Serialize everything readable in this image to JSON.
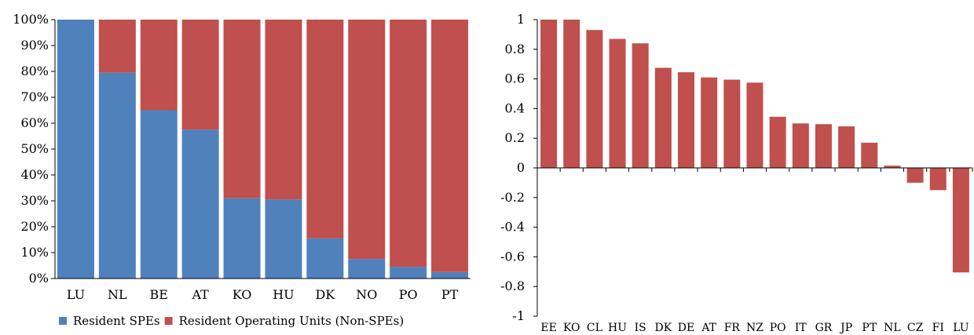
{
  "chart_data": [
    {
      "type": "bar",
      "stacked": true,
      "percent": true,
      "categories": [
        "LU",
        "NL",
        "BE",
        "AT",
        "KO",
        "HU",
        "DK",
        "NO",
        "PO",
        "PT"
      ],
      "series": [
        {
          "name": "Resident SPEs",
          "color": "#4f81bd",
          "values": [
            100,
            79.5,
            65,
            57.5,
            31,
            30.5,
            15.5,
            7.5,
            4.5,
            2.5
          ]
        },
        {
          "name": "Resident Operating Units (Non-SPEs)",
          "color": "#c0504d",
          "values": [
            0,
            20.5,
            35,
            42.5,
            69,
            69.5,
            84.5,
            92.5,
            95.5,
            97.5
          ]
        }
      ],
      "ylim": [
        0,
        100
      ],
      "yticks": [
        "0%",
        "10%",
        "20%",
        "30%",
        "40%",
        "50%",
        "60%",
        "70%",
        "80%",
        "90%",
        "100%"
      ],
      "legend_position": "bottom"
    },
    {
      "type": "bar",
      "categories": [
        "EE",
        "KO",
        "CL",
        "HU",
        "IS",
        "DK",
        "DE",
        "AT",
        "FR",
        "NZ",
        "PO",
        "IT",
        "GR",
        "JP",
        "PT",
        "NL",
        "CZ",
        "FI",
        "LU"
      ],
      "values": [
        1.0,
        1.0,
        0.93,
        0.87,
        0.84,
        0.675,
        0.645,
        0.61,
        0.595,
        0.575,
        0.345,
        0.3,
        0.295,
        0.28,
        0.17,
        0.015,
        -0.1,
        -0.15,
        -0.705
      ],
      "color": "#c0504d",
      "ylim": [
        -1,
        1
      ],
      "yticks": [
        "-1",
        "-0.8",
        "-0.6",
        "-0.4",
        "-0.2",
        "0",
        "0.2",
        "0.4",
        "0.6",
        "0.8",
        "1"
      ]
    }
  ]
}
